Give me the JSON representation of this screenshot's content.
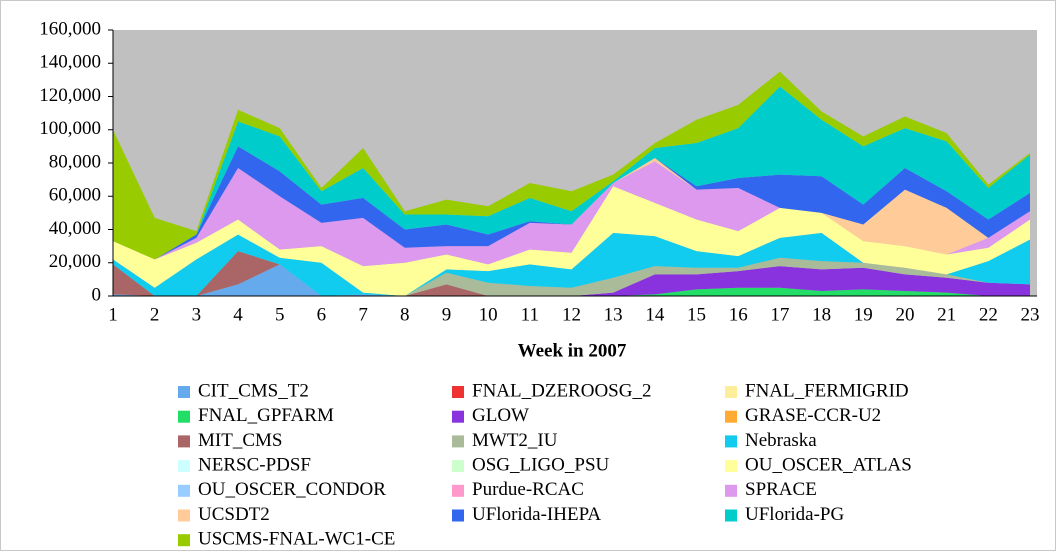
{
  "chart_data": {
    "type": "stacked_area",
    "x_label": "Week in 2007",
    "categories": [
      "1",
      "2",
      "3",
      "4",
      "5",
      "6",
      "7",
      "8",
      "9",
      "10",
      "11",
      "12",
      "13",
      "14",
      "15",
      "16",
      "17",
      "18",
      "19",
      "20",
      "21",
      "22",
      "23"
    ],
    "ylim": [
      0,
      160000
    ],
    "yticks": [
      0,
      {
        "value": 20000,
        "label": "20,000"
      },
      {
        "value": 40000,
        "label": "40,000"
      },
      {
        "value": 60000,
        "label": "60,000"
      },
      {
        "value": 80000,
        "label": "80,000"
      },
      {
        "value": 100000,
        "label": "100,000"
      },
      {
        "value": 120000,
        "label": "120,000"
      },
      {
        "value": 140000,
        "label": "140,000"
      },
      {
        "value": 160000,
        "label": "160,000"
      }
    ],
    "grid": false,
    "legend": "bottom",
    "series": [
      {
        "name": "CIT_CMS_T2",
        "color": "#66aaee",
        "values": [
          1000,
          0,
          0,
          7000,
          19000,
          0,
          1000,
          0,
          0,
          0,
          0,
          0,
          0,
          0,
          0,
          0,
          0,
          0,
          0,
          0,
          0,
          0,
          0
        ]
      },
      {
        "name": "FNAL_DZEROOSG_2",
        "color": "#ee3333",
        "values": [
          0,
          0,
          0,
          0,
          0,
          0,
          0,
          0,
          0,
          0,
          0,
          0,
          0,
          0,
          0,
          0,
          0,
          0,
          0,
          0,
          0,
          0,
          0
        ]
      },
      {
        "name": "FNAL_FERMIGRID",
        "color": "#ffee99",
        "values": [
          0,
          0,
          0,
          0,
          0,
          0,
          0,
          0,
          0,
          0,
          0,
          0,
          0,
          0,
          0,
          0,
          0,
          0,
          0,
          0,
          0,
          0,
          0
        ]
      },
      {
        "name": "FNAL_GPFARM",
        "color": "#22dd66",
        "values": [
          0,
          0,
          0,
          0,
          0,
          0,
          0,
          0,
          0,
          0,
          0,
          0,
          0,
          1000,
          4000,
          5000,
          5000,
          3000,
          4000,
          3000,
          2000,
          0,
          0
        ]
      },
      {
        "name": "GLOW",
        "color": "#8833dd",
        "values": [
          0,
          0,
          0,
          0,
          0,
          0,
          0,
          0,
          0,
          0,
          0,
          0,
          2000,
          12000,
          9000,
          10000,
          13000,
          13000,
          13000,
          10000,
          9000,
          8000,
          7000
        ]
      },
      {
        "name": "GRASE-CCR-U2",
        "color": "#ffaa33",
        "values": [
          0,
          0,
          0,
          0,
          0,
          0,
          0,
          0,
          0,
          0,
          0,
          0,
          0,
          0,
          0,
          0,
          0,
          0,
          0,
          0,
          0,
          0,
          0
        ]
      },
      {
        "name": "MIT_CMS",
        "color": "#aa6666",
        "values": [
          18000,
          0,
          0,
          20000,
          0,
          0,
          0,
          0,
          7000,
          0,
          0,
          0,
          0,
          0,
          0,
          0,
          0,
          0,
          0,
          0,
          0,
          0,
          0
        ]
      },
      {
        "name": "MWT2_IU",
        "color": "#aabb99",
        "values": [
          0,
          0,
          0,
          0,
          0,
          0,
          0,
          0,
          7000,
          8000,
          6000,
          5000,
          9000,
          5000,
          4000,
          2000,
          5000,
          5000,
          3000,
          4000,
          2000,
          0,
          0
        ]
      },
      {
        "name": "Nebraska",
        "color": "#11ccee",
        "values": [
          3000,
          5000,
          22000,
          10000,
          4000,
          20000,
          1000,
          0,
          2000,
          7000,
          13000,
          11000,
          27000,
          18000,
          10000,
          7000,
          12000,
          17000,
          0,
          0,
          0,
          13000,
          27000
        ]
      },
      {
        "name": "NERSC-PDSF",
        "color": "#ccffff",
        "values": [
          0,
          0,
          0,
          0,
          0,
          0,
          0,
          0,
          0,
          0,
          0,
          0,
          0,
          0,
          0,
          0,
          0,
          0,
          0,
          0,
          0,
          0,
          0
        ]
      },
      {
        "name": "OSG_LIGO_PSU",
        "color": "#ccffcc",
        "values": [
          0,
          0,
          0,
          0,
          0,
          0,
          0,
          0,
          0,
          0,
          0,
          0,
          0,
          0,
          0,
          0,
          0,
          0,
          0,
          0,
          0,
          0,
          0
        ]
      },
      {
        "name": "OU_OSCER_ATLAS",
        "color": "#ffff99",
        "values": [
          11000,
          17000,
          10000,
          9000,
          5000,
          10000,
          16000,
          20000,
          9000,
          4000,
          9000,
          10000,
          28000,
          20000,
          19000,
          15000,
          18000,
          12000,
          13000,
          13000,
          12000,
          8000,
          12000
        ]
      },
      {
        "name": "OU_OSCER_CONDOR",
        "color": "#99ccff",
        "values": [
          0,
          0,
          0,
          0,
          0,
          0,
          0,
          0,
          0,
          0,
          0,
          0,
          0,
          0,
          0,
          0,
          0,
          0,
          0,
          0,
          0,
          0,
          0
        ]
      },
      {
        "name": "Purdue-RCAC",
        "color": "#ff99cc",
        "values": [
          0,
          0,
          0,
          0,
          0,
          0,
          0,
          0,
          0,
          0,
          0,
          0,
          0,
          0,
          0,
          0,
          0,
          0,
          0,
          0,
          0,
          0,
          0
        ]
      },
      {
        "name": "SPRACE",
        "color": "#dd99ee",
        "values": [
          0,
          0,
          3000,
          31000,
          32000,
          14000,
          29000,
          9000,
          5000,
          11000,
          16000,
          17000,
          2000,
          25000,
          18000,
          26000,
          0,
          0,
          0,
          0,
          0,
          6000,
          5000
        ]
      },
      {
        "name": "UCSDT2",
        "color": "#ffcc99",
        "values": [
          0,
          0,
          0,
          0,
          0,
          0,
          0,
          0,
          0,
          0,
          0,
          0,
          0,
          2000,
          0,
          0,
          0,
          0,
          10000,
          34000,
          28000,
          0,
          0
        ]
      },
      {
        "name": "UFlorida-IHEPA",
        "color": "#3366ee",
        "values": [
          0,
          0,
          2000,
          13000,
          15000,
          11000,
          12000,
          11000,
          13000,
          7000,
          1000,
          0,
          0,
          0,
          2000,
          6000,
          20000,
          22000,
          12000,
          13000,
          10000,
          11000,
          11000
        ]
      },
      {
        "name": "UFlorida-PG",
        "color": "#00cccc",
        "values": [
          0,
          0,
          0,
          15000,
          21000,
          8000,
          18000,
          9000,
          6000,
          11000,
          14000,
          8000,
          1000,
          6000,
          26000,
          30000,
          53000,
          34000,
          35000,
          24000,
          30000,
          19000,
          23000
        ]
      },
      {
        "name": "USCMS-FNAL-WC1-CE",
        "color": "#99cc00",
        "values": [
          67000,
          25000,
          2000,
          7000,
          5000,
          2000,
          12000,
          2000,
          9000,
          6000,
          9000,
          12000,
          4000,
          3000,
          14000,
          14000,
          9000,
          5000,
          6000,
          7000,
          5000,
          2000,
          1000
        ]
      }
    ]
  }
}
